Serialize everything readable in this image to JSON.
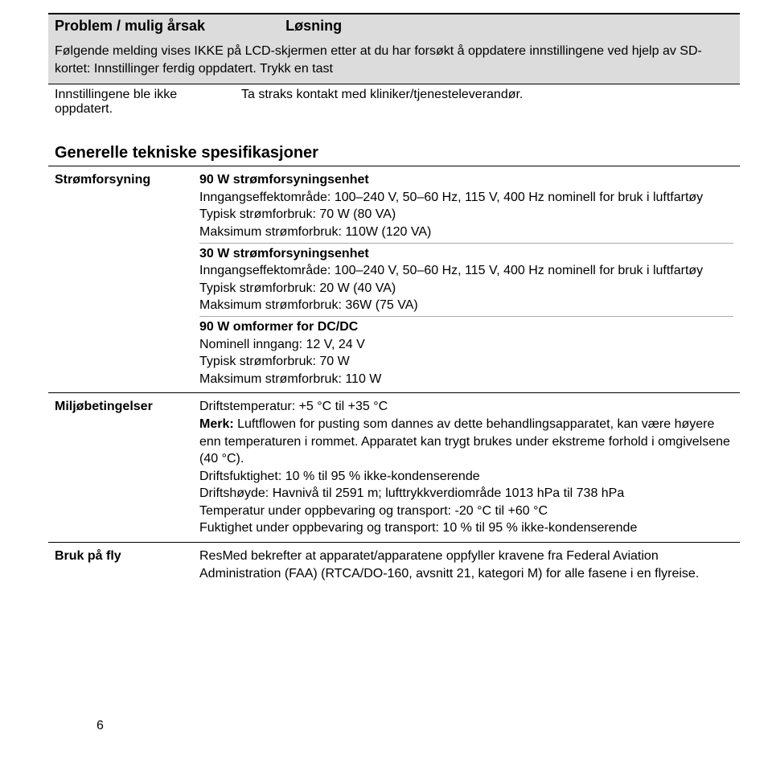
{
  "header": {
    "col1": "Problem / mulig årsak",
    "col2": "Løsning"
  },
  "banner": "Følgende melding vises IKKE på LCD-skjermen etter at du har forsøkt å oppdatere innstillingene ved hjelp av SD-kortet: Innstillinger ferdig oppdatert. Trykk en tast",
  "response": {
    "left": "Innstillingene ble ikke oppdatert.",
    "right": "Ta straks kontakt med kliniker/tjenesteleverandør."
  },
  "sectionTitle": "Generelle tekniske spesifikasjoner",
  "power": {
    "label": "Strømforsyning",
    "b1_title": "90 W strømforsyningsenhet",
    "b1_l1": "Inngangseffektområde: 100–240 V, 50–60 Hz, 115 V, 400 Hz nominell for bruk i luftfartøy",
    "b1_l2": "Typisk strømforbruk: 70 W (80 VA)",
    "b1_l3": "Maksimum strømforbruk: 110W (120 VA)",
    "b2_title": "30 W strømforsyningsenhet",
    "b2_l1": "Inngangseffektområde: 100–240 V, 50–60 Hz, 115 V, 400 Hz nominell for bruk i luftfartøy",
    "b2_l2": "Typisk strømforbruk: 20 W (40 VA)",
    "b2_l3": "Maksimum strømforbruk: 36W (75 VA)",
    "b3_title": "90 W omformer for DC/DC",
    "b3_l1": "Nominell inngang: 12 V, 24 V",
    "b3_l2": "Typisk strømforbruk: 70 W",
    "b3_l3": "Maksimum strømforbruk: 110 W"
  },
  "env": {
    "label": "Miljøbetingelser",
    "l1": "Driftstemperatur: +5 °C til +35 °C",
    "note_label": "Merk:",
    "note_text": " Luftflowen for pusting som dannes av dette behandlingsapparatet, kan være høyere enn temperaturen i rommet. Apparatet kan trygt brukes under ekstreme forhold i omgivelsene (40 °C).",
    "l3": "Driftsfuktighet: 10 % til 95 % ikke-kondenserende",
    "l4": "Driftshøyde: Havnivå til 2591 m; lufttrykkverdiområde 1013 hPa til 738 hPa",
    "l5": "Temperatur under oppbevaring og transport: -20 °C til +60 °C",
    "l6": "Fuktighet under oppbevaring og transport: 10 % til 95 % ikke-kondenserende"
  },
  "fly": {
    "label": "Bruk på fly",
    "text": "ResMed bekrefter at apparatet/apparatene oppfyller kravene fra Federal Aviation Administration (FAA) (RTCA/DO-160, avsnitt 21, kategori M) for alle fasene i en flyreise."
  },
  "pageNum": "6",
  "style": {
    "bg_grey": "#dcdcdc",
    "text_color": "#000000",
    "header_fontsize": 18,
    "body_fontsize": 16,
    "section_fontsize": 20
  }
}
